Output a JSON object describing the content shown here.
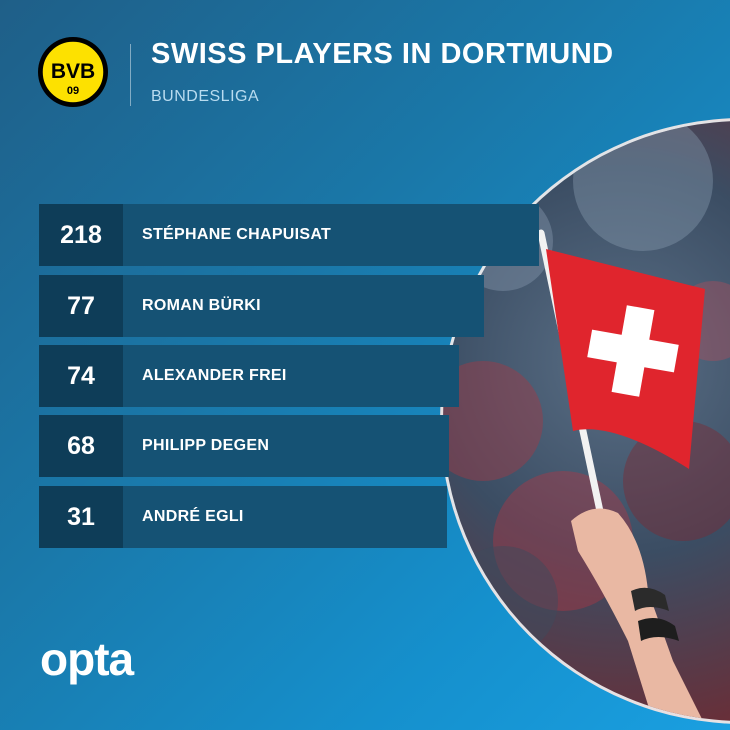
{
  "header": {
    "logo_letters": "BVB",
    "logo_number": "09",
    "title": "SWISS PLAYERS IN DORTMUND",
    "subtitle": "BUNDESLIGA"
  },
  "players": [
    {
      "value": "218",
      "name": "STÉPHANE CHAPUISAT"
    },
    {
      "value": "77",
      "name": "ROMAN BÜRKI"
    },
    {
      "value": "74",
      "name": "ALEXANDER FREI"
    },
    {
      "value": "68",
      "name": "PHILIPP DEGEN"
    },
    {
      "value": "31",
      "name": "ANDRÉ EGLI"
    }
  ],
  "footer": {
    "brand": "opta"
  },
  "colors": {
    "logo_yellow": "#fde100",
    "flag_red": "#e0252d",
    "row_bg": "#155274",
    "num_bg": "#0e3d58"
  }
}
